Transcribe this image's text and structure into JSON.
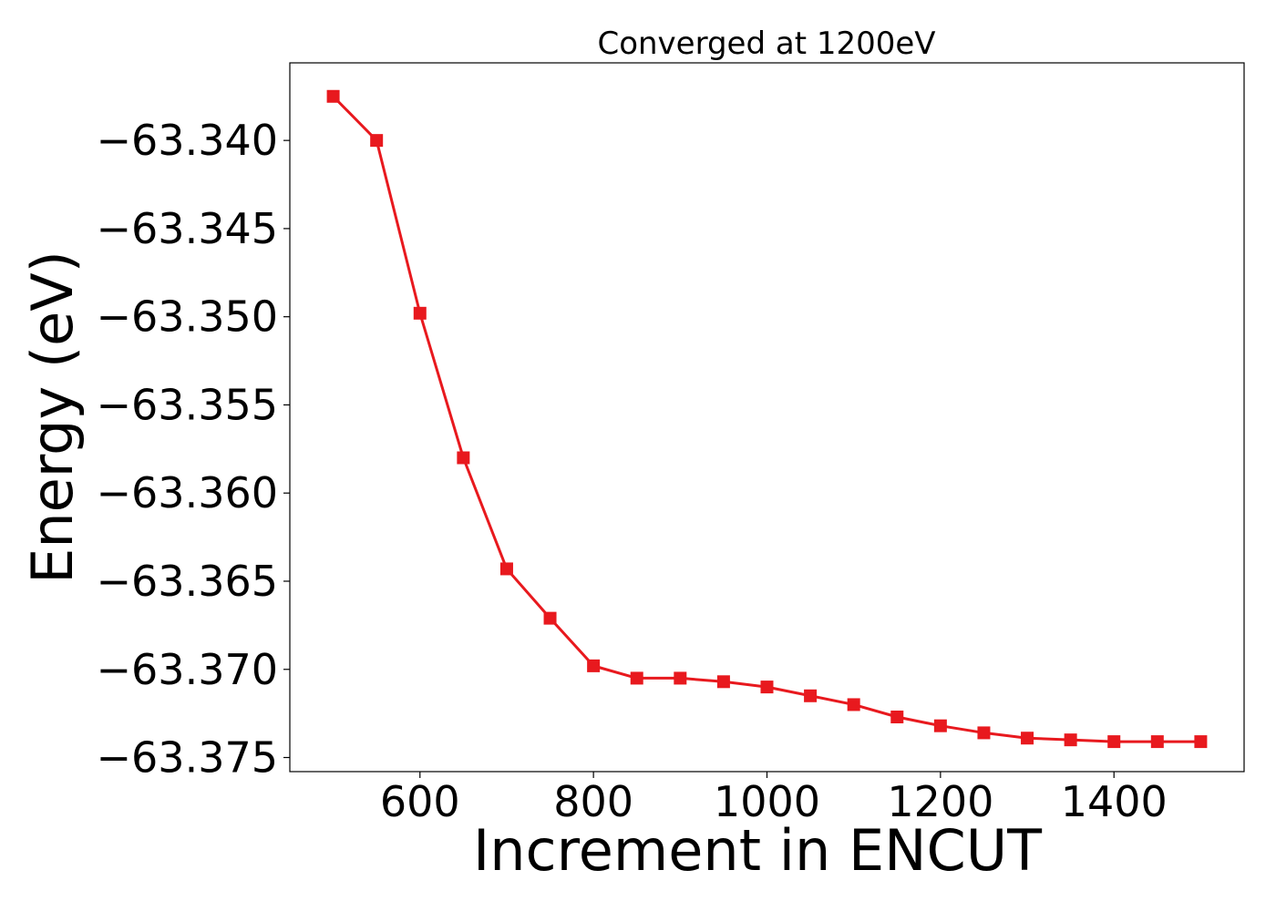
{
  "chart_data": {
    "type": "line",
    "title": "Converged at 1200eV",
    "xlabel": "Increment in ENCUT",
    "ylabel": "Energy (eV)",
    "xlim": [
      450,
      1550
    ],
    "ylim": [
      -63.3758,
      -63.3356
    ],
    "xticks": [
      600,
      800,
      1000,
      1200,
      1400
    ],
    "xtick_labels": [
      "600",
      "800",
      "1000",
      "1200",
      "1400"
    ],
    "yticks": [
      -63.34,
      -63.345,
      -63.35,
      -63.355,
      -63.36,
      -63.365,
      -63.37,
      -63.375
    ],
    "ytick_labels": [
      "−63.340",
      "−63.345",
      "−63.350",
      "−63.355",
      "−63.360",
      "−63.365",
      "−63.370",
      "−63.375"
    ],
    "grid": false,
    "series": [
      {
        "marker": "square",
        "color": "#e8191e",
        "x": [
          500,
          550,
          600,
          650,
          700,
          750,
          800,
          850,
          900,
          950,
          1000,
          1050,
          1100,
          1150,
          1200,
          1250,
          1300,
          1350,
          1400,
          1450,
          1500
        ],
        "y": [
          -63.3375,
          -63.34,
          -63.3498,
          -63.358,
          -63.3643,
          -63.3671,
          -63.3698,
          -63.3705,
          -63.3705,
          -63.3707,
          -63.371,
          -63.3715,
          -63.372,
          -63.3727,
          -63.3732,
          -63.3736,
          -63.3739,
          -63.374,
          -63.3741,
          -63.3741,
          -63.3741
        ]
      }
    ]
  }
}
